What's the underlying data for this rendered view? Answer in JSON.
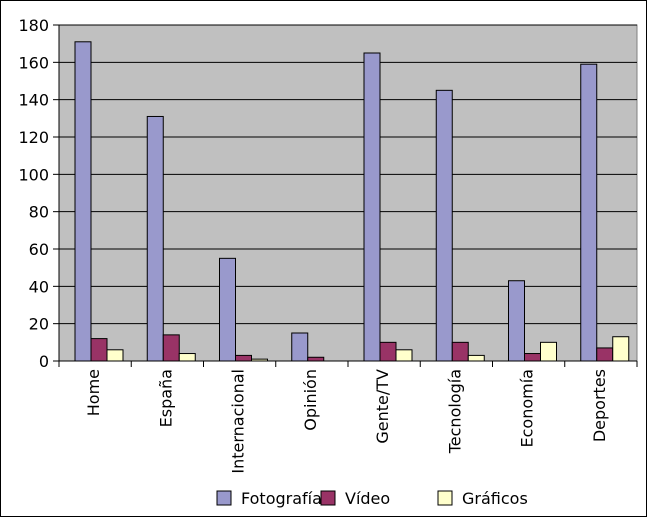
{
  "chart_data": {
    "type": "bar",
    "title": "",
    "xlabel": "",
    "ylabel": "",
    "categories": [
      "Home",
      "España",
      "Internacional",
      "Opinión",
      "Gente/TV",
      "Tecnología",
      "Economía",
      "Deportes"
    ],
    "series": [
      {
        "name": "Fotografía",
        "color": "#9999cc",
        "values": [
          171,
          131,
          55,
          15,
          165,
          145,
          43,
          159
        ]
      },
      {
        "name": "Vídeo",
        "color": "#993366",
        "values": [
          12,
          14,
          3,
          2,
          10,
          10,
          4,
          7
        ]
      },
      {
        "name": "Gráficos",
        "color": "#ffffcc",
        "values": [
          6,
          4,
          1,
          0,
          6,
          3,
          10,
          13
        ]
      }
    ],
    "ylim": [
      0,
      180
    ],
    "yticks": [
      0,
      20,
      40,
      60,
      80,
      100,
      120,
      140,
      160,
      180
    ],
    "grid": true,
    "plot_background": "#c0c0c0",
    "legend_position": "bottom"
  }
}
